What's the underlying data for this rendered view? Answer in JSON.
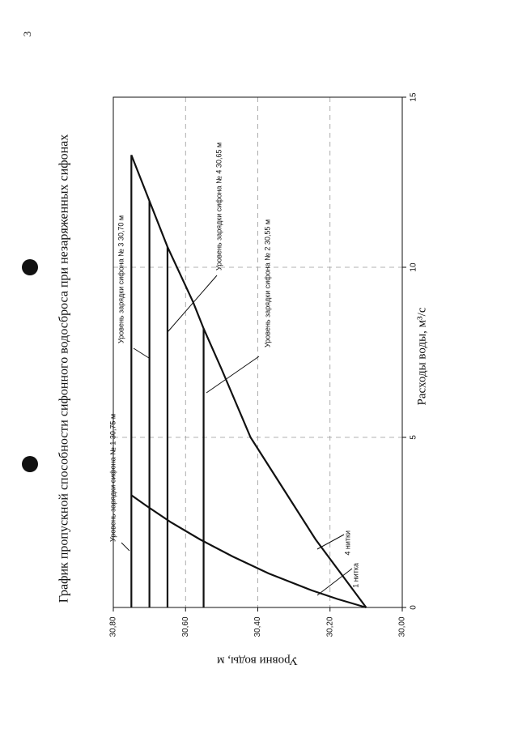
{
  "page_number": "3",
  "chart_data": {
    "type": "line",
    "title": "График пропускной способности сифонного водосброса при незаряженных сифонах",
    "xlabel": "Расходы воды, м³/с",
    "ylabel": "Уровни воды, м",
    "xlim": [
      0,
      15
    ],
    "xticks": [
      0,
      5,
      10,
      15
    ],
    "ylim": [
      30,
      30.8
    ],
    "yticks": [
      {
        "value": 30,
        "label": "30,00"
      },
      {
        "value": 30.2,
        "label": "30,20"
      },
      {
        "value": 30.4,
        "label": "30,40"
      },
      {
        "value": 30.6,
        "label": "30,60"
      },
      {
        "value": 30.8,
        "label": "30,80"
      }
    ],
    "grid": true,
    "series": [
      {
        "name": "1 нитка",
        "color": "#111111",
        "x": [
          0,
          0.25,
          0.5,
          1,
          1.5,
          2,
          2.5,
          3,
          3.3
        ],
        "values": [
          30.1,
          30.18,
          30.25,
          30.37,
          30.47,
          30.56,
          30.64,
          30.71,
          30.75
        ]
      },
      {
        "name": "4 нитки",
        "color": "#111111",
        "x": [
          0,
          1,
          2,
          3,
          4,
          5,
          6,
          7,
          8.2,
          9,
          10.6,
          11.95,
          13.3
        ],
        "values": [
          30.1,
          30.17,
          30.24,
          30.3,
          30.36,
          30.42,
          30.46,
          30.5,
          30.55,
          30.58,
          30.65,
          30.7,
          30.75
        ]
      }
    ],
    "level_lines": {
      "values": [
        30.75,
        30.7,
        30.65,
        30.55
      ],
      "x_end": [
        13.3,
        11.95,
        10.6,
        8.2
      ],
      "labels": [
        "Уровень зарядки сифона № 1 30,75 м",
        "Уровень зарядки сифона № 3 30,70 м",
        "Уровень зарядки сифона № 4 30,65 м",
        "Уровень зарядки сифона № 2 30,55 м"
      ]
    }
  }
}
